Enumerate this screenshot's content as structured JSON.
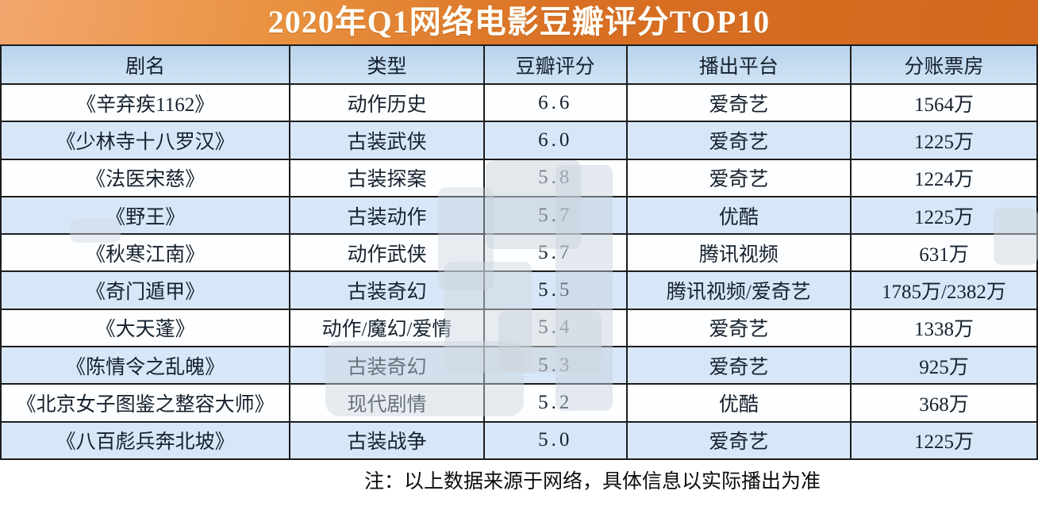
{
  "title": "2020年Q1网络电影豆瓣评分TOP10",
  "table": {
    "columns": [
      "剧名",
      "类型",
      "豆瓣评分",
      "播出平台",
      "分账票房"
    ],
    "rows": [
      {
        "title": "《辛弃疾1162》",
        "genre": "动作历史",
        "rating": "6.6",
        "platform": "爱奇艺",
        "box_office": "1564万"
      },
      {
        "title": "《少林寺十八罗汉》",
        "genre": "古装武侠",
        "rating": "6.0",
        "platform": "爱奇艺",
        "box_office": "1225万"
      },
      {
        "title": "《法医宋慈》",
        "genre": "古装探案",
        "rating": "5.8",
        "platform": "爱奇艺",
        "box_office": "1224万"
      },
      {
        "title": "《野王》",
        "genre": "古装动作",
        "rating": "5.7",
        "platform": "优酷",
        "box_office": "1225万"
      },
      {
        "title": "《秋寒江南》",
        "genre": "动作武侠",
        "rating": "5.7",
        "platform": "腾讯视频",
        "box_office": "631万"
      },
      {
        "title": "《奇门遁甲》",
        "genre": "古装奇幻",
        "rating": "5.5",
        "platform": "腾讯视频/爱奇艺",
        "box_office": "1785万/2382万"
      },
      {
        "title": "《大天蓬》",
        "genre": "动作/魔幻/爱情",
        "rating": "5.4",
        "platform": "爱奇艺",
        "box_office": "1338万"
      },
      {
        "title": "《陈情令之乱魄》",
        "genre": "古装奇幻",
        "rating": "5.3",
        "platform": "爱奇艺",
        "box_office": "925万"
      },
      {
        "title": "《北京女子图鉴之整容大师》",
        "genre": "现代剧情",
        "rating": "5.2",
        "platform": "优酷",
        "box_office": "368万"
      },
      {
        "title": "《八百彪兵奔北坡》",
        "genre": "古装战争",
        "rating": "5.0",
        "platform": "爱奇艺",
        "box_office": "1225万"
      }
    ]
  },
  "footer_note": "注：以上数据来源于网络，具体信息以实际播出为准",
  "colors": {
    "title_gradient_start": "#f3a76e",
    "title_gradient_end": "#d2691e",
    "title_text": "#fffdf6",
    "header_row_bg": "#c2d9ef",
    "stripe_row_bg": "#d7e7f7",
    "plain_row_bg": "#fdfeff",
    "border": "#1d1d1d",
    "cell_text": "#15212e"
  },
  "chart_data": {
    "type": "table",
    "title": "2020年Q1网络电影豆瓣评分TOP10",
    "columns": [
      "剧名",
      "类型",
      "豆瓣评分",
      "播出平台",
      "分账票房"
    ],
    "rows": [
      [
        "《辛弃疾1162》",
        "动作历史",
        6.6,
        "爱奇艺",
        "1564万"
      ],
      [
        "《少林寺十八罗汉》",
        "古装武侠",
        6.0,
        "爱奇艺",
        "1225万"
      ],
      [
        "《法医宋慈》",
        "古装探案",
        5.8,
        "爱奇艺",
        "1224万"
      ],
      [
        "《野王》",
        "古装动作",
        5.7,
        "优酷",
        "1225万"
      ],
      [
        "《秋寒江南》",
        "动作武侠",
        5.7,
        "腾讯视频",
        "631万"
      ],
      [
        "《奇门遁甲》",
        "古装奇幻",
        5.5,
        "腾讯视频/爱奇艺",
        "1785万/2382万"
      ],
      [
        "《大天蓬》",
        "动作/魔幻/爱情",
        5.4,
        "爱奇艺",
        "1338万"
      ],
      [
        "《陈情令之乱魄》",
        "古装奇幻",
        5.3,
        "爱奇艺",
        "925万"
      ],
      [
        "《北京女子图鉴之整容大师》",
        "现代剧情",
        5.2,
        "优酷",
        "368万"
      ],
      [
        "《八百彪兵奔北坡》",
        "古装战争",
        5.0,
        "爱奇艺",
        "1225万"
      ]
    ],
    "note": "注：以上数据来源于网络，具体信息以实际播出为准"
  }
}
